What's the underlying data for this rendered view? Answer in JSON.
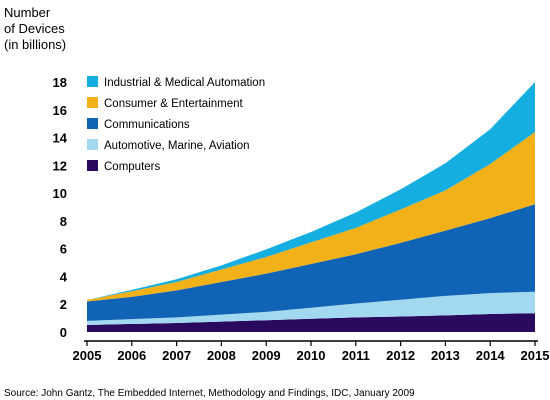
{
  "chart_data": {
    "type": "area",
    "stacked": true,
    "ylabel": [
      "Number",
      "of Devices",
      "(in billions)"
    ],
    "xlabel": "",
    "x": [
      2005,
      2006,
      2007,
      2008,
      2009,
      2010,
      2011,
      2012,
      2013,
      2014,
      2015
    ],
    "ylim": [
      0,
      18
    ],
    "yticks": [
      0,
      2,
      4,
      6,
      8,
      10,
      12,
      14,
      16,
      18
    ],
    "legend_position": "top-left",
    "series": [
      {
        "name": "Computers",
        "color": "#2a0a5e",
        "values": [
          0.5,
          0.58,
          0.65,
          0.75,
          0.85,
          0.95,
          1.05,
          1.12,
          1.2,
          1.3,
          1.35
        ]
      },
      {
        "name": "Automotive, Marine, Aviation",
        "color": "#a3d9f0",
        "values": [
          0.3,
          0.35,
          0.4,
          0.5,
          0.6,
          0.8,
          1.0,
          1.2,
          1.4,
          1.5,
          1.55
        ]
      },
      {
        "name": "Communications",
        "color": "#1063b5",
        "values": [
          1.4,
          1.6,
          1.95,
          2.35,
          2.75,
          3.15,
          3.55,
          4.1,
          4.7,
          5.4,
          6.3
        ]
      },
      {
        "name": "Consumer & Entertainment",
        "color": "#f2b118",
        "values": [
          0.1,
          0.4,
          0.6,
          0.9,
          1.2,
          1.55,
          1.9,
          2.4,
          2.9,
          3.9,
          5.2
        ]
      },
      {
        "name": "Industrial & Medical Automation",
        "color": "#15aee0",
        "values": [
          0.0,
          0.1,
          0.2,
          0.3,
          0.55,
          0.75,
          1.1,
          1.45,
          1.95,
          2.5,
          3.6
        ]
      }
    ],
    "legend_order": [
      4,
      3,
      2,
      1,
      0
    ],
    "source": "Source: John Gantz, The Embedded Internet, Methodology and Findings, IDC, January 2009"
  }
}
